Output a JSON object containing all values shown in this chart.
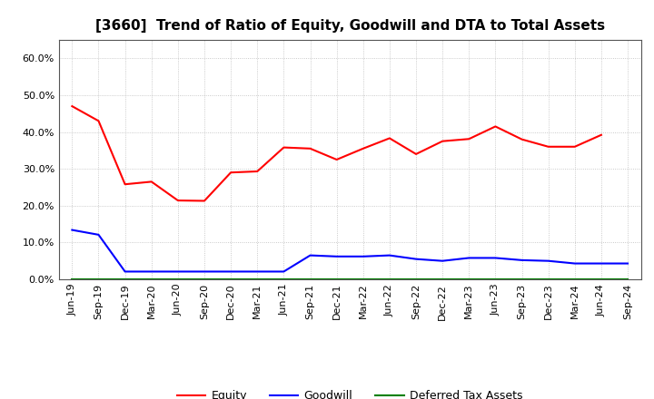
{
  "title": "[3660]  Trend of Ratio of Equity, Goodwill and DTA to Total Assets",
  "x_labels": [
    "Jun-19",
    "Sep-19",
    "Dec-19",
    "Mar-20",
    "Jun-20",
    "Sep-20",
    "Dec-20",
    "Mar-21",
    "Jun-21",
    "Sep-21",
    "Dec-21",
    "Mar-22",
    "Jun-22",
    "Sep-22",
    "Dec-22",
    "Mar-23",
    "Jun-23",
    "Sep-23",
    "Dec-23",
    "Mar-24",
    "Jun-24",
    "Sep-24"
  ],
  "equity": [
    0.47,
    0.43,
    0.258,
    0.265,
    0.214,
    0.213,
    0.29,
    0.293,
    0.358,
    0.355,
    0.325,
    0.355,
    0.383,
    0.34,
    0.375,
    0.381,
    0.415,
    0.38,
    0.36,
    0.36,
    0.392,
    null
  ],
  "goodwill": [
    0.134,
    0.121,
    0.021,
    0.021,
    0.021,
    0.021,
    0.021,
    0.021,
    0.021,
    0.065,
    0.062,
    0.062,
    0.065,
    0.055,
    0.05,
    0.058,
    0.058,
    0.052,
    0.05,
    0.043,
    0.043,
    0.043
  ],
  "dta": [
    0.0,
    0.0,
    0.0,
    0.0,
    0.0,
    0.0,
    0.0,
    0.0,
    0.0,
    0.0,
    0.0,
    0.0,
    0.0,
    0.0,
    0.0,
    0.0,
    0.0,
    0.0,
    0.0,
    0.0,
    0.0,
    0.0
  ],
  "equity_color": "#ff0000",
  "goodwill_color": "#0000ff",
  "dta_color": "#008000",
  "background_color": "#ffffff",
  "grid_color": "#aaaaaa",
  "ylim": [
    0.0,
    0.65
  ],
  "yticks": [
    0.0,
    0.1,
    0.2,
    0.3,
    0.4,
    0.5,
    0.6
  ],
  "title_fontsize": 11,
  "legend_fontsize": 9,
  "tick_fontsize": 8
}
